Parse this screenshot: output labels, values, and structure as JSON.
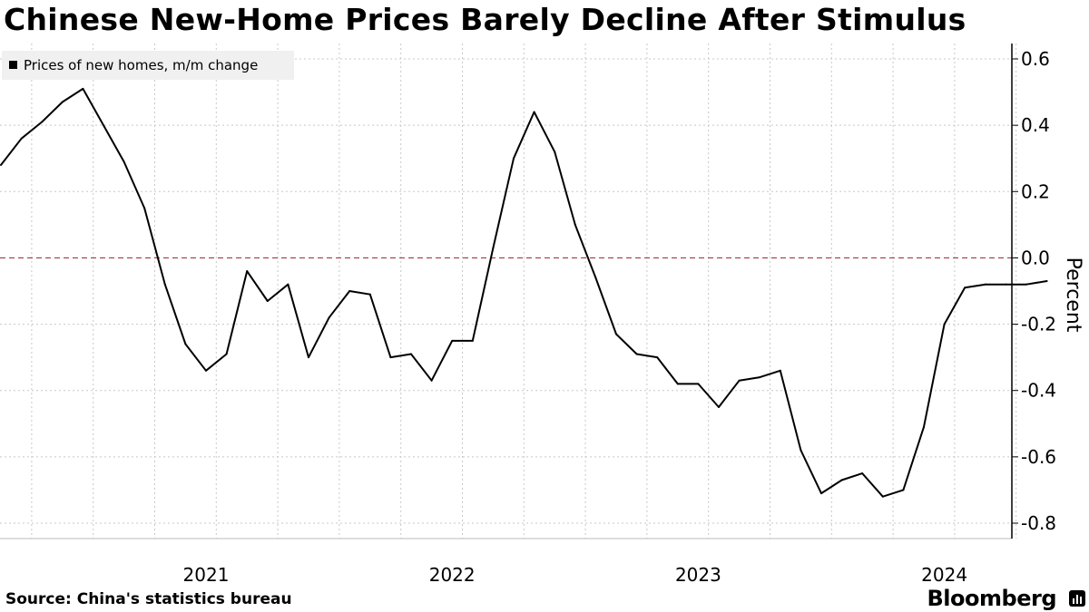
{
  "title": "Chinese New-Home Prices Barely Decline After Stimulus",
  "source": "Source: China's statistics bureau",
  "brand": "Bloomberg",
  "colors": {
    "line": "#000000",
    "zero_line": "#a33b3b",
    "grid": "#c8c8c8",
    "legend_bg": "#f0f0f0"
  },
  "chart_data": {
    "type": "line",
    "title": "Chinese New-Home Prices Barely Decline After Stimulus",
    "ylabel": "Percent",
    "ylim": [
      -0.85,
      0.64
    ],
    "yticks": [
      0.6,
      0.4,
      0.2,
      0.0,
      -0.2,
      -0.4,
      -0.6,
      -0.8
    ],
    "ytick_labels": [
      "0.6",
      "0.4",
      "0.2",
      "0.0",
      "-0.2",
      "-0.4",
      "-0.6",
      "-0.8"
    ],
    "reference_line": 0.0,
    "grid": true,
    "legend_position": "top-left",
    "xticks": [
      "2021",
      "2022",
      "2023",
      "2024"
    ],
    "series": [
      {
        "name": "Prices of new homes, m/m change",
        "x": [
          "2020-08",
          "2020-09",
          "2020-10",
          "2020-11",
          "2020-12",
          "2021-01",
          "2021-02",
          "2021-03",
          "2021-04",
          "2021-05",
          "2021-06",
          "2021-07",
          "2021-08",
          "2021-09",
          "2021-10",
          "2021-11",
          "2021-12",
          "2022-01",
          "2022-02",
          "2022-03",
          "2022-04",
          "2022-05",
          "2022-06",
          "2022-07",
          "2022-08",
          "2022-09",
          "2022-10",
          "2022-11",
          "2022-12",
          "2023-01",
          "2023-02",
          "2023-03",
          "2023-04",
          "2023-05",
          "2023-06",
          "2023-07",
          "2023-08",
          "2023-09",
          "2023-10",
          "2023-11",
          "2023-12",
          "2024-01",
          "2024-02",
          "2024-03",
          "2024-04",
          "2024-05",
          "2024-06",
          "2024-07",
          "2024-08",
          "2024-09",
          "2024-10",
          "2024-11"
        ],
        "values": [
          0.28,
          0.36,
          0.41,
          0.47,
          0.51,
          0.4,
          0.29,
          0.15,
          -0.08,
          -0.26,
          -0.34,
          -0.29,
          -0.04,
          -0.13,
          -0.08,
          -0.3,
          -0.18,
          -0.1,
          -0.11,
          -0.3,
          -0.29,
          -0.37,
          -0.25,
          -0.25,
          0.03,
          0.3,
          0.44,
          0.32,
          0.1,
          -0.06,
          -0.23,
          -0.29,
          -0.3,
          -0.38,
          -0.38,
          -0.45,
          -0.37,
          -0.36,
          -0.34,
          -0.58,
          -0.71,
          -0.67,
          -0.65,
          -0.72,
          -0.7,
          -0.51,
          -0.2,
          -0.09,
          -0.08,
          -0.08,
          -0.08,
          -0.07
        ]
      }
    ]
  }
}
